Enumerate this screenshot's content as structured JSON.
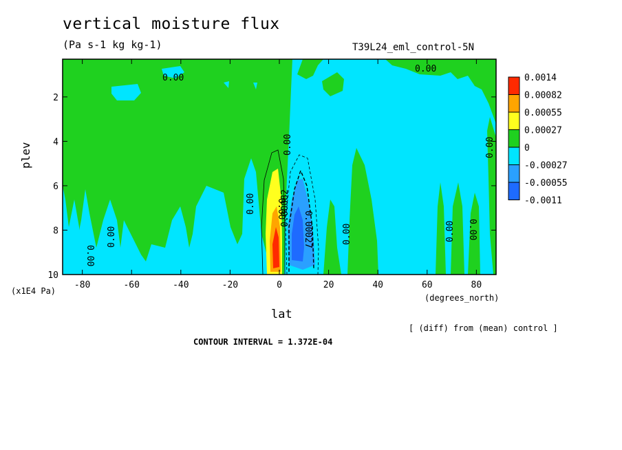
{
  "title": "vertical moisture flux",
  "units": "(Pa s-1 kg kg-1)",
  "run_id": "T39L24_eml_control-5N",
  "note": "[ (diff) from (mean) control ]",
  "contour_interval": "CONTOUR INTERVAL = 1.372E-04",
  "colors": {
    "neg3": "#1e6bff",
    "neg2": "#2aa0ff",
    "neg1": "#00e5ff",
    "zero": "#1fd11f",
    "pos1": "#ffff1e",
    "pos2": "#ffa500",
    "pos3": "#ff2a00"
  },
  "chart_data": {
    "type": "heatmap",
    "title": "vertical moisture flux",
    "xlabel": "lat",
    "x_units": "(degrees_north)",
    "ylabel": "plev",
    "y_units": "(x1E4 Pa)",
    "xlim": [
      -88,
      88
    ],
    "ylim": [
      10,
      0.3
    ],
    "x_ticks": [
      -80,
      -60,
      -40,
      -20,
      0,
      20,
      40,
      60,
      80
    ],
    "y_ticks": [
      2,
      4,
      6,
      8,
      10
    ],
    "legend": {
      "placement": "right",
      "levels": [
        "0.0014",
        "0.00082",
        "0.00055",
        "0.00027",
        "0",
        "-0.00027",
        "-0.00055",
        "-0.0011"
      ]
    },
    "contour_labels": [
      "0.00",
      "0.00",
      "0.00",
      "0.00",
      "0.00",
      "0.00",
      "0.00",
      "0.00",
      "0.00",
      "0.00",
      "0.00",
      "0.00027",
      "0.00082"
    ],
    "features": [
      {
        "name": "positive flux maximum",
        "lat": -1,
        "plev": 8.5,
        "value": 0.0014
      },
      {
        "name": "negative flux minimum",
        "lat": 7,
        "plev": 8.5,
        "value": -0.0011
      }
    ]
  }
}
